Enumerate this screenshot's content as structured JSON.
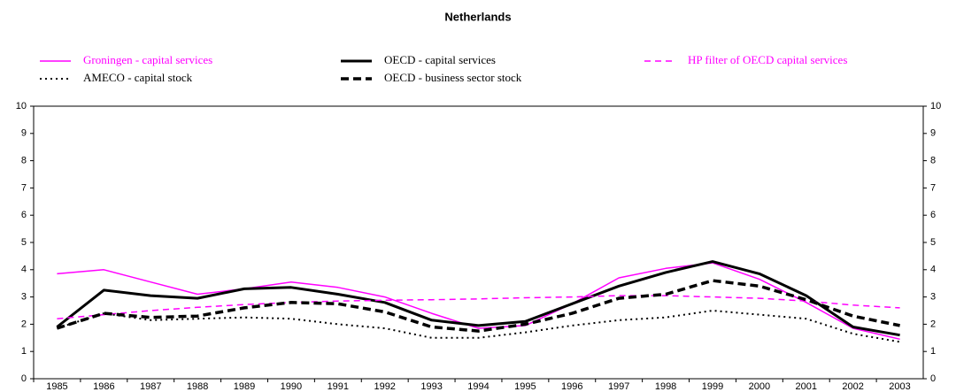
{
  "chart_data": {
    "type": "line",
    "title": "Netherlands",
    "categories": [
      "1985",
      "1986",
      "1987",
      "1988",
      "1989",
      "1990",
      "1991",
      "1992",
      "1993",
      "1994",
      "1995",
      "1996",
      "1997",
      "1998",
      "1999",
      "2000",
      "2001",
      "2002",
      "2003"
    ],
    "series": [
      {
        "name": "Groningen - capital services",
        "color": "#ff00ff",
        "line_style": "solid",
        "line_width": 1.5,
        "values": [
          3.85,
          4.0,
          3.55,
          3.1,
          3.3,
          3.55,
          3.35,
          3.0,
          2.4,
          1.85,
          1.95,
          2.75,
          3.7,
          4.05,
          4.25,
          3.65,
          2.8,
          1.85,
          1.45
        ]
      },
      {
        "name": "OECD - capital services",
        "color": "#000000",
        "line_style": "solid",
        "line_width": 3,
        "values": [
          1.9,
          3.25,
          3.05,
          2.95,
          3.3,
          3.35,
          3.1,
          2.8,
          2.15,
          1.95,
          2.1,
          2.75,
          3.4,
          3.9,
          4.3,
          3.85,
          3.05,
          1.9,
          1.6
        ]
      },
      {
        "name": "HP filter of OECD capital services",
        "color": "#ff00ff",
        "line_style": "dashed",
        "line_width": 1.5,
        "values": [
          2.2,
          2.35,
          2.5,
          2.62,
          2.72,
          2.8,
          2.85,
          2.88,
          2.9,
          2.93,
          2.97,
          3.0,
          3.05,
          3.05,
          3.0,
          2.95,
          2.85,
          2.7,
          2.6
        ]
      },
      {
        "name": "AMECO - capital stock",
        "color": "#000000",
        "line_style": "dotted",
        "line_width": 2,
        "values": [
          1.85,
          2.4,
          2.15,
          2.2,
          2.25,
          2.2,
          2.0,
          1.85,
          1.5,
          1.5,
          1.7,
          1.95,
          2.15,
          2.25,
          2.5,
          2.35,
          2.2,
          1.65,
          1.35
        ]
      },
      {
        "name": "OECD - business sector stock",
        "color": "#000000",
        "line_style": "dashed",
        "line_width": 3.5,
        "values": [
          1.85,
          2.4,
          2.25,
          2.3,
          2.6,
          2.8,
          2.75,
          2.45,
          1.9,
          1.75,
          2.0,
          2.4,
          2.95,
          3.1,
          3.6,
          3.4,
          2.9,
          2.3,
          1.95
        ]
      }
    ],
    "ylim": [
      0,
      10
    ],
    "yticks": [
      0,
      1,
      2,
      3,
      4,
      5,
      6,
      7,
      8,
      9,
      10
    ],
    "y2lim": [
      0,
      10
    ],
    "y2ticks": [
      0,
      1,
      2,
      3,
      4,
      5,
      6,
      7,
      8,
      9,
      10
    ],
    "grid": false
  }
}
